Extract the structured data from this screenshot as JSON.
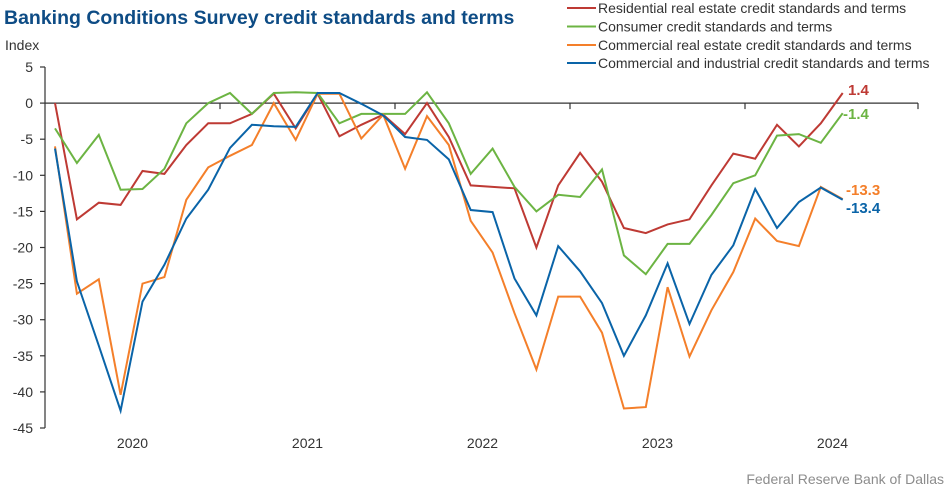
{
  "chart_data": {
    "type": "line",
    "title": "Banking Conditions Survey credit standards and terms",
    "ylabel": "Index",
    "xlabel": "",
    "ylim": [
      -45,
      5
    ],
    "yticks": [
      5,
      0,
      -5,
      -10,
      -15,
      -20,
      -25,
      -30,
      -35,
      -40,
      -45
    ],
    "ytick_labels": [
      "5",
      "0",
      "-5",
      "-10",
      "-15",
      "-20",
      "-25",
      "-30",
      "-35",
      "-40",
      "-45"
    ],
    "x_year_labels": [
      "2020",
      "2021",
      "2022",
      "2023",
      "2024"
    ],
    "x_first_period_index": 0,
    "periods_per_year": 8,
    "grid": false,
    "legend_position": "top-right",
    "source": "Federal Reserve Bank of Dallas",
    "series": [
      {
        "name": "Residential real estate credit standards and terms",
        "color": "#be3a34",
        "end_label": "1.4",
        "values": [
          0.0,
          -16.1,
          -13.8,
          -14.1,
          -9.4,
          -9.8,
          -5.8,
          -2.8,
          -2.8,
          -1.5,
          1.3,
          -3.5,
          1.3,
          -4.6,
          -3.0,
          -1.6,
          -4.3,
          0.0,
          -4.7,
          -11.4,
          -11.6,
          -11.8,
          -20.0,
          -11.4,
          -6.9,
          -10.9,
          -17.3,
          -18.0,
          -16.8,
          -16.1,
          -11.4,
          -7.0,
          -7.7,
          -3.0,
          -6.0,
          -2.8,
          1.4
        ]
      },
      {
        "name": "Consumer credit standards and terms",
        "color": "#6cb443",
        "end_label": "-1.4",
        "values": [
          -3.5,
          -8.3,
          -4.4,
          -12.0,
          -11.9,
          -9.1,
          -2.8,
          0.0,
          1.4,
          -1.5,
          1.4,
          1.5,
          1.4,
          -2.8,
          -1.5,
          -1.5,
          -1.5,
          1.5,
          -2.8,
          -9.8,
          -6.3,
          -11.6,
          -15.0,
          -12.7,
          -13.0,
          -9.2,
          -21.1,
          -23.7,
          -19.5,
          -19.5,
          -15.5,
          -11.1,
          -10.0,
          -4.5,
          -4.3,
          -5.5,
          -1.4
        ]
      },
      {
        "name": "Commercial real estate credit standards and terms",
        "color": "#f47f2a",
        "end_label": "-13.3",
        "values": [
          -6.0,
          -26.4,
          -24.4,
          -40.4,
          -25.0,
          -24.1,
          -13.4,
          -8.9,
          -7.3,
          -5.8,
          0.0,
          -5.1,
          1.3,
          1.3,
          -4.9,
          -1.6,
          -9.1,
          -1.8,
          -5.8,
          -16.3,
          -20.7,
          -29.1,
          -36.9,
          -26.8,
          -26.8,
          -31.8,
          -42.3,
          -42.1,
          -25.5,
          -35.1,
          -28.7,
          -23.4,
          -16.0,
          -19.1,
          -19.8,
          -11.6,
          -13.3
        ]
      },
      {
        "name": "Commercial and industrial credit standards and terms",
        "color": "#0a64a8",
        "end_label": "-13.4",
        "values": [
          -6.3,
          -24.7,
          -33.6,
          -42.6,
          -27.5,
          -22.4,
          -16.0,
          -12.0,
          -6.2,
          -3.0,
          -3.2,
          -3.3,
          1.4,
          1.4,
          -0.1,
          -1.7,
          -4.7,
          -5.1,
          -7.8,
          -14.8,
          -15.1,
          -24.3,
          -29.4,
          -19.8,
          -23.3,
          -27.7,
          -35.0,
          -29.4,
          -22.2,
          -30.6,
          -23.8,
          -19.7,
          -11.9,
          -17.3,
          -13.7,
          -11.7,
          -13.4
        ]
      }
    ]
  }
}
